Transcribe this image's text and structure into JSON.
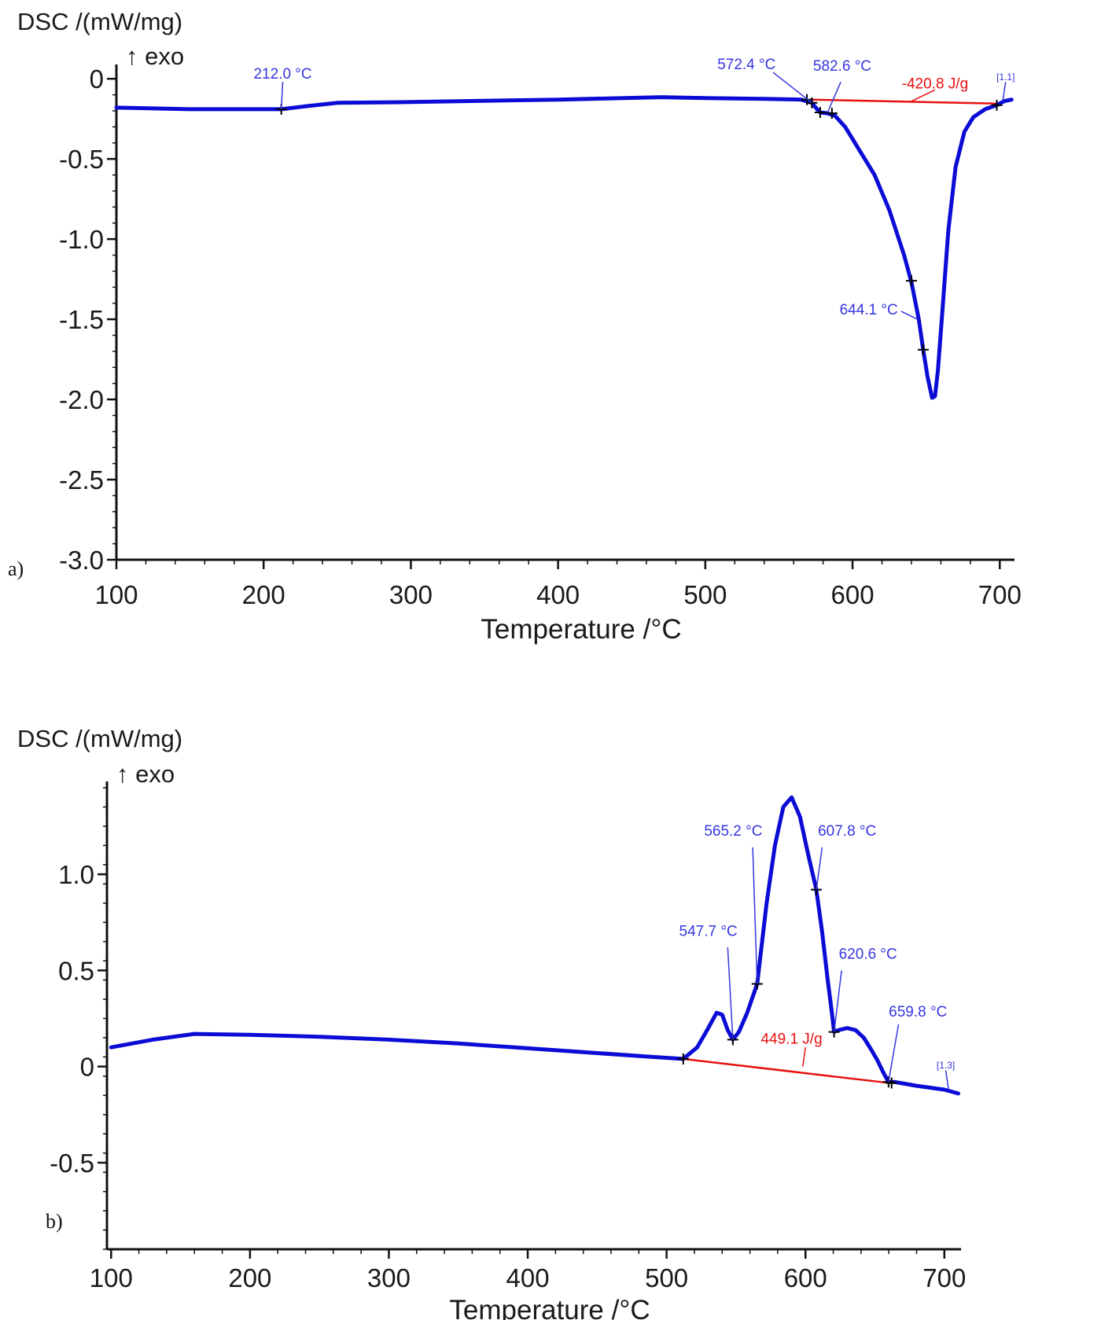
{
  "colors": {
    "curve": "#0b0bd6",
    "baseline": "#e81010",
    "axis": "#111111",
    "annotation_blue": "#3535e0",
    "annotation_red": "#e81010"
  },
  "chart_data": [
    {
      "type": "line",
      "panel_label": "a)",
      "ylabel": "DSC /(mW/mg)",
      "ylabel_sub": "↑ exo",
      "xlabel": "Temperature /°C",
      "xlim": [
        100,
        710
      ],
      "ylim": [
        -3.0,
        0.05
      ],
      "xticks": [
        "100",
        "200",
        "300",
        "400",
        "500",
        "600",
        "700"
      ],
      "yticks": [
        "0",
        "-0.5",
        "-1.0",
        "-1.5",
        "-2.0",
        "-2.5",
        "-3.0"
      ],
      "ytick_values": [
        0,
        -0.5,
        -1.0,
        -1.5,
        -2.0,
        -2.5,
        -3.0
      ],
      "series": [
        {
          "x": [
            100,
            150,
            200,
            212,
            230,
            250,
            300,
            400,
            470,
            500,
            540,
            565,
            572.4,
            575,
            578,
            582.6,
            588,
            595,
            605,
            615,
            625,
            635,
            640,
            645,
            648,
            651,
            654,
            656,
            658,
            661,
            665,
            670,
            676,
            682,
            690,
            698,
            703,
            708
          ],
          "y": [
            -0.18,
            -0.19,
            -0.19,
            -0.19,
            -0.17,
            -0.15,
            -0.145,
            -0.13,
            -0.115,
            -0.12,
            -0.125,
            -0.13,
            -0.15,
            -0.18,
            -0.21,
            -0.215,
            -0.23,
            -0.3,
            -0.45,
            -0.6,
            -0.82,
            -1.1,
            -1.27,
            -1.5,
            -1.69,
            -1.86,
            -1.99,
            -1.98,
            -1.82,
            -1.45,
            -0.95,
            -0.55,
            -0.33,
            -0.24,
            -0.19,
            -0.165,
            -0.14,
            -0.13
          ]
        }
      ],
      "baseline": {
        "x": [
          572.4,
          698
        ],
        "y": [
          -0.13,
          -0.155
        ]
      },
      "markers": [
        {
          "x": 212,
          "y": -0.19
        },
        {
          "x": 569,
          "y": -0.13
        },
        {
          "x": 572.4,
          "y": -0.15
        },
        {
          "x": 578,
          "y": -0.21
        },
        {
          "x": 586,
          "y": -0.215
        },
        {
          "x": 640,
          "y": -1.26
        },
        {
          "x": 648,
          "y": -1.69
        },
        {
          "x": 698,
          "y": -0.165
        }
      ],
      "annotations": [
        {
          "text": "212.0 °C",
          "x": 212,
          "y": -0.19,
          "lx": 213,
          "ly": -0.02,
          "tx": 213,
          "ty": 0.0,
          "anchor": "middle",
          "color": "blue"
        },
        {
          "text": "572.4 °C",
          "x": 572.4,
          "y": -0.15,
          "lx": 546,
          "ly": 0.04,
          "tx": 528,
          "ty": 0.06,
          "anchor": "middle",
          "color": "blue"
        },
        {
          "text": "582.6 °C",
          "x": 583,
          "y": -0.21,
          "lx": 592,
          "ly": -0.02,
          "tx": 593,
          "ty": 0.05,
          "anchor": "middle",
          "color": "blue"
        },
        {
          "text": "-420.8 J/g",
          "x": 640,
          "y": -0.14,
          "lx": 656,
          "ly": -0.07,
          "tx": 656,
          "ty": -0.06,
          "anchor": "middle",
          "color": "red"
        },
        {
          "text": "644.1 °C",
          "x": 644,
          "y": -1.5,
          "lx": 633,
          "ly": -1.45,
          "tx": 611,
          "ty": -1.47,
          "anchor": "middle",
          "color": "blue"
        },
        {
          "text": "[1.1]",
          "x": 702,
          "y": -0.14,
          "lx": 704,
          "ly": -0.02,
          "tx": 704,
          "ty": -0.01,
          "anchor": "middle",
          "color": "blue",
          "small": true
        }
      ]
    },
    {
      "type": "line",
      "panel_label": "b)",
      "ylabel": "DSC /(mW/mg)",
      "ylabel_sub": "↑ exo",
      "xlabel": "Temperature /°C",
      "xlim": [
        97,
        712
      ],
      "ylim": [
        -0.95,
        1.45
      ],
      "xticks": [
        "100",
        "200",
        "300",
        "400",
        "500",
        "600",
        "700"
      ],
      "yticks": [
        "1.0",
        "0.5",
        "0",
        "-0.5"
      ],
      "ytick_values": [
        1.0,
        0.5,
        0,
        -0.5
      ],
      "series": [
        {
          "x": [
            100,
            130,
            160,
            200,
            250,
            300,
            350,
            400,
            450,
            490,
            512,
            522,
            530,
            536,
            540,
            544,
            547.7,
            552,
            558,
            565.2,
            572,
            578,
            584,
            590,
            596,
            602,
            607.8,
            612,
            616,
            619,
            620.6,
            624,
            630,
            636,
            642,
            648,
            652,
            656,
            659.8,
            664,
            680,
            700,
            710
          ],
          "y": [
            0.1,
            0.14,
            0.17,
            0.165,
            0.155,
            0.14,
            0.12,
            0.095,
            0.07,
            0.05,
            0.04,
            0.1,
            0.2,
            0.28,
            0.27,
            0.19,
            0.14,
            0.18,
            0.28,
            0.43,
            0.85,
            1.15,
            1.35,
            1.4,
            1.3,
            1.1,
            0.92,
            0.7,
            0.45,
            0.28,
            0.18,
            0.19,
            0.2,
            0.19,
            0.15,
            0.08,
            0.03,
            -0.03,
            -0.08,
            -0.08,
            -0.1,
            -0.12,
            -0.14
          ]
        }
      ],
      "baseline": {
        "x": [
          512,
          660
        ],
        "y": [
          0.04,
          -0.085
        ]
      },
      "markers": [
        {
          "x": 512,
          "y": 0.04
        },
        {
          "x": 547.7,
          "y": 0.14
        },
        {
          "x": 565.2,
          "y": 0.43
        },
        {
          "x": 607.8,
          "y": 0.92
        },
        {
          "x": 620.6,
          "y": 0.18
        },
        {
          "x": 659.8,
          "y": -0.08
        },
        {
          "x": 662,
          "y": -0.085
        }
      ],
      "annotations": [
        {
          "text": "547.7 °C",
          "x": 547.7,
          "y": 0.14,
          "lx": 544,
          "ly": 0.62,
          "tx": 530,
          "ty": 0.68,
          "anchor": "middle",
          "color": "blue"
        },
        {
          "text": "565.2 °C",
          "x": 565.2,
          "y": 0.43,
          "lx": 562,
          "ly": 1.14,
          "tx": 548,
          "ty": 1.2,
          "anchor": "middle",
          "color": "blue"
        },
        {
          "text": "607.8 °C",
          "x": 607.8,
          "y": 0.92,
          "lx": 612,
          "ly": 1.14,
          "tx": 630,
          "ty": 1.2,
          "anchor": "middle",
          "color": "blue"
        },
        {
          "text": "620.6 °C",
          "x": 620.6,
          "y": 0.18,
          "lx": 626,
          "ly": 0.5,
          "tx": 645,
          "ty": 0.56,
          "anchor": "middle",
          "color": "blue"
        },
        {
          "text": "449.1 J/g",
          "x": 598,
          "y": 0.0,
          "lx": 600,
          "ly": 0.1,
          "tx": 590,
          "ty": 0.12,
          "anchor": "middle",
          "color": "red"
        },
        {
          "text": "659.8 °C",
          "x": 659.8,
          "y": -0.08,
          "lx": 667,
          "ly": 0.22,
          "tx": 681,
          "ty": 0.26,
          "anchor": "middle",
          "color": "blue"
        },
        {
          "text": "[1.3]",
          "x": 703,
          "y": -0.12,
          "lx": 701,
          "ly": -0.02,
          "tx": 701,
          "ty": -0.01,
          "anchor": "middle",
          "color": "blue",
          "small": true
        }
      ]
    }
  ]
}
